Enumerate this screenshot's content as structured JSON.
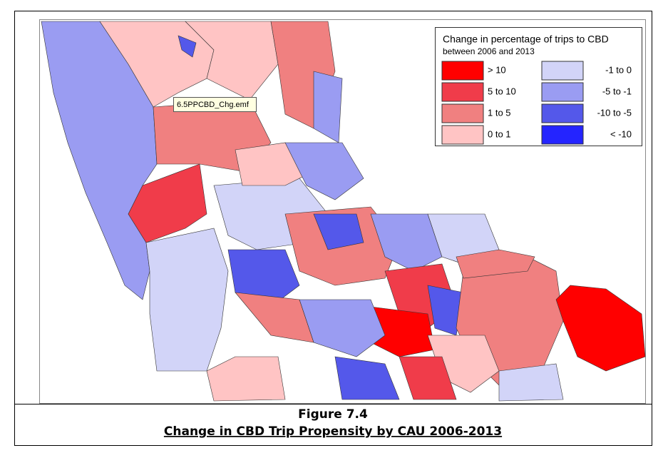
{
  "legend": {
    "title": "Change in percentage of trips to CBD",
    "subtitle": "between 2006 and 2013",
    "items": [
      {
        "label": "> 10",
        "color": "#ff0000"
      },
      {
        "label": "5 to 10",
        "color": "#f03c4a"
      },
      {
        "label": "1 to 5",
        "color": "#f08080"
      },
      {
        "label": "0 to 1",
        "color": "#ffc4c4"
      },
      {
        "label": "-1 to 0",
        "color": "#d2d4f8"
      },
      {
        "label": "-5 to -1",
        "color": "#9a9cf2"
      },
      {
        "label": "-10 to -5",
        "color": "#5458ea"
      },
      {
        "label": "< -10",
        "color": "#2424ff"
      }
    ]
  },
  "tooltip": "6.5PPCBD_Chg.emf",
  "caption": {
    "figure": "Figure 7.4",
    "title": "Change in CBD Trip Propensity by CAU 2006-2013"
  }
}
